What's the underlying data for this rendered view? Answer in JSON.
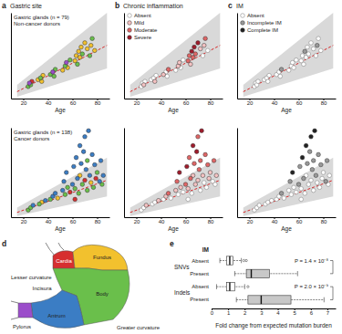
{
  "chart_data": [
    {
      "type": "scatter",
      "panel": "a",
      "title": "Gastric site",
      "annotations": [
        "Gastric glands (n = 79)",
        "Non-cancer donors"
      ],
      "xlabel": "Age",
      "xlim": [
        10,
        90
      ],
      "xticks": [
        20,
        40,
        60,
        80
      ],
      "ylim": [
        0,
        100
      ],
      "tick_labels": "x",
      "marker": "circle",
      "expected": {
        "x": [
          15,
          88
        ],
        "values": [
          8,
          62
        ],
        "color": "#d62728",
        "line_style": "dashed"
      },
      "interval": {
        "x": [
          15,
          88
        ],
        "lower": [
          2,
          35
        ],
        "upper": [
          16,
          100
        ]
      },
      "series": [
        {
          "color": "#d62f2f",
          "x": [
            27
          ],
          "values": [
            20
          ]
        },
        {
          "color": "#f2c12e",
          "x": [
            32,
            35,
            36,
            52,
            56,
            62,
            63,
            65,
            66,
            67,
            70,
            72,
            75,
            78
          ],
          "values": [
            22,
            20,
            27,
            33,
            36,
            44,
            50,
            55,
            48,
            60,
            65,
            58,
            62,
            56
          ]
        },
        {
          "color": "#6abf4b",
          "x": [
            24,
            26,
            34,
            42,
            45,
            46,
            54,
            58,
            64,
            68,
            74,
            76
          ],
          "values": [
            14,
            16,
            24,
            28,
            26,
            34,
            38,
            45,
            40,
            52,
            50,
            70
          ]
        },
        {
          "color": "#9b4dca",
          "x": [
            25,
            44,
            55
          ],
          "values": [
            18,
            31,
            42
          ]
        }
      ]
    },
    {
      "type": "scatter",
      "annotations": [
        "Gastric glands (n = 138)",
        "Cancer donors"
      ],
      "xlabel": "Age",
      "xlim": [
        10,
        90
      ],
      "xticks": [
        20,
        40,
        60,
        80
      ],
      "ylim": [
        0,
        150
      ],
      "tick_labels": "x",
      "marker": "circle",
      "expected": {
        "x": [
          15,
          88
        ],
        "values": [
          8,
          62
        ],
        "color": "#d62728",
        "line_style": "dashed"
      },
      "interval": {
        "x": [
          15,
          88
        ],
        "lower": [
          2,
          35
        ],
        "upper": [
          16,
          100
        ]
      },
      "series": [
        {
          "color": "#d62f2f",
          "x": [
            58,
            70,
            79,
            62
          ],
          "values": [
            42,
            62,
            65,
            30
          ]
        },
        {
          "color": "#f2c12e",
          "x": [
            35,
            48,
            66,
            75
          ],
          "values": [
            25,
            32,
            70,
            58
          ]
        },
        {
          "color": "#6abf4b",
          "x": [
            24,
            26,
            33,
            42,
            54,
            56,
            62,
            65,
            68,
            72,
            72,
            77,
            80,
            84
          ],
          "values": [
            12,
            16,
            22,
            30,
            38,
            50,
            48,
            40,
            55,
            45,
            95,
            50,
            75,
            55
          ]
        },
        {
          "color": "#3b7dc4",
          "x": [
            28,
            38,
            44,
            46,
            52,
            53,
            55,
            60,
            61,
            63,
            64,
            66,
            67,
            69,
            70,
            71,
            73,
            74,
            76,
            78,
            82,
            83,
            85
          ],
          "values": [
            20,
            28,
            35,
            40,
            45,
            60,
            75,
            55,
            85,
            100,
            65,
            120,
            90,
            110,
            135,
            80,
            145,
            70,
            105,
            88,
            60,
            95,
            70
          ]
        }
      ]
    },
    {
      "type": "scatter",
      "panel": "b",
      "title": "Chronic inflammation",
      "legend": "top-left",
      "xlabel": "Age",
      "xlim": [
        10,
        90
      ],
      "xticks": [
        20,
        40,
        60,
        80
      ],
      "ylim": [
        0,
        100
      ],
      "tick_labels": "x",
      "marker": "circle",
      "expected": {
        "x": [
          15,
          88
        ],
        "values": [
          8,
          62
        ],
        "color": "#d62728",
        "line_style": "dashed"
      },
      "interval": {
        "x": [
          15,
          88
        ],
        "lower": [
          2,
          35
        ],
        "upper": [
          16,
          100
        ]
      },
      "series": [
        {
          "name": "Absent",
          "color": "#ffffff",
          "x": [
            24,
            25,
            27,
            32,
            34,
            36,
            44,
            45,
            52,
            56,
            58,
            74,
            78
          ],
          "values": [
            14,
            18,
            20,
            22,
            24,
            27,
            31,
            26,
            33,
            36,
            45,
            50,
            56
          ]
        },
        {
          "name": "Mild",
          "color": "#f4c2c2",
          "x": [
            26,
            35,
            42,
            54,
            55,
            64,
            72,
            75
          ],
          "values": [
            16,
            20,
            28,
            38,
            42,
            40,
            58,
            62
          ]
        },
        {
          "name": "Moderate",
          "color": "#e06666",
          "x": [
            46,
            62,
            63,
            66,
            68,
            76
          ],
          "values": [
            34,
            44,
            50,
            48,
            52,
            70
          ]
        },
        {
          "name": "Severe",
          "color": "#a01c2c",
          "x": [
            65,
            67,
            70
          ],
          "values": [
            55,
            60,
            65
          ]
        }
      ]
    },
    {
      "type": "scatter",
      "xlabel": "Age",
      "xlim": [
        10,
        90
      ],
      "xticks": [
        20,
        40,
        60,
        80
      ],
      "ylim": [
        0,
        150
      ],
      "tick_labels": "x",
      "marker": "circle",
      "expected": {
        "x": [
          15,
          88
        ],
        "values": [
          8,
          62
        ],
        "color": "#d62728",
        "line_style": "dashed"
      },
      "interval": {
        "x": [
          15,
          88
        ],
        "lower": [
          2,
          35
        ],
        "upper": [
          16,
          100
        ]
      },
      "series": [
        {
          "color": "#ffffff",
          "x": [
            24,
            26,
            33,
            35,
            42,
            48,
            54,
            58,
            65,
            72,
            75,
            77,
            82,
            84,
            62
          ],
          "values": [
            12,
            16,
            22,
            25,
            30,
            32,
            38,
            42,
            40,
            45,
            58,
            50,
            60,
            55,
            30
          ]
        },
        {
          "color": "#f4c2c2",
          "x": [
            28,
            38,
            44,
            52,
            56,
            62,
            66,
            68,
            70,
            74,
            79,
            80,
            85
          ],
          "values": [
            20,
            28,
            35,
            45,
            50,
            48,
            70,
            55,
            62,
            70,
            65,
            75,
            70
          ]
        },
        {
          "color": "#e06666",
          "x": [
            46,
            53,
            60,
            63,
            64,
            67,
            70,
            71,
            72,
            76,
            78,
            83
          ],
          "values": [
            40,
            60,
            55,
            100,
            65,
            90,
            135,
            80,
            95,
            105,
            88,
            95
          ]
        },
        {
          "color": "#a01c2c",
          "x": [
            55,
            61,
            66,
            69,
            73
          ],
          "values": [
            75,
            85,
            120,
            110,
            145
          ]
        }
      ]
    },
    {
      "type": "scatter",
      "panel": "c",
      "title": "IM",
      "legend": "top-left",
      "xlabel": "Age",
      "xlim": [
        10,
        90
      ],
      "xticks": [
        20,
        40,
        60,
        80
      ],
      "ylim": [
        0,
        100
      ],
      "tick_labels": "x",
      "marker": "circle",
      "expected": {
        "x": [
          15,
          88
        ],
        "values": [
          8,
          62
        ],
        "color": "#d62728",
        "line_style": "dashed"
      },
      "interval": {
        "x": [
          15,
          88
        ],
        "lower": [
          2,
          35
        ],
        "upper": [
          16,
          100
        ]
      },
      "series": [
        {
          "name": "Absent",
          "color": "#ffffff",
          "x": [
            24,
            25,
            26,
            27,
            32,
            34,
            35,
            36,
            42,
            44,
            45,
            52,
            54,
            55,
            56,
            58,
            62,
            63,
            64,
            66,
            67,
            68,
            70,
            72,
            74,
            76,
            78
          ],
          "values": [
            14,
            18,
            16,
            20,
            22,
            24,
            20,
            27,
            28,
            31,
            26,
            33,
            38,
            42,
            36,
            45,
            44,
            50,
            40,
            48,
            60,
            52,
            65,
            58,
            50,
            70,
            56
          ]
        },
        {
          "name": "Incomplete IM",
          "color": "#999999",
          "x": [
            46,
            65,
            75
          ],
          "values": [
            34,
            55,
            62
          ]
        },
        {
          "name": "Complete IM",
          "color": "#222222",
          "x": [],
          "values": []
        }
      ]
    },
    {
      "type": "scatter",
      "xlabel": "Age",
      "xlim": [
        10,
        90
      ],
      "xticks": [
        20,
        40,
        60,
        80
      ],
      "ylim": [
        0,
        150
      ],
      "tick_labels": "x",
      "marker": "circle",
      "expected": {
        "x": [
          15,
          88
        ],
        "values": [
          8,
          62
        ],
        "color": "#d62728",
        "line_style": "dashed"
      },
      "interval": {
        "x": [
          15,
          88
        ],
        "lower": [
          2,
          35
        ],
        "upper": [
          16,
          100
        ]
      },
      "series": [
        {
          "color": "#ffffff",
          "x": [
            24,
            26,
            28,
            33,
            35,
            38,
            42,
            44,
            48,
            52,
            54,
            56,
            58,
            62,
            65,
            66,
            68,
            70,
            72,
            75,
            77,
            79,
            80,
            84,
            85,
            62
          ],
          "values": [
            12,
            16,
            20,
            22,
            25,
            28,
            30,
            35,
            32,
            45,
            38,
            50,
            42,
            48,
            40,
            70,
            55,
            62,
            45,
            58,
            50,
            65,
            75,
            55,
            70,
            30
          ]
        },
        {
          "color": "#999999",
          "x": [
            46,
            53,
            60,
            61,
            64,
            67,
            69,
            71,
            72,
            74,
            76,
            78,
            82,
            83
          ],
          "values": [
            40,
            60,
            55,
            85,
            65,
            90,
            110,
            80,
            95,
            70,
            105,
            88,
            60,
            95
          ]
        },
        {
          "color": "#222222",
          "x": [
            55,
            63,
            66,
            70,
            73
          ],
          "values": [
            75,
            100,
            120,
            135,
            145
          ]
        }
      ]
    },
    {
      "type": "box",
      "panel": "e",
      "orientation": "horizontal",
      "ylabel": "IM",
      "xlabel": "Fold change from expected mutation burden",
      "xlim": [
        0,
        7.5
      ],
      "xticks": [
        0,
        1,
        2,
        3,
        4,
        5,
        6,
        7
      ],
      "series": [
        {
          "name": "SNVs",
          "categories": [
            "Absent",
            "Present"
          ],
          "colors": [
            "#ffffff",
            "#c8c8c8"
          ],
          "min": [
            0.5,
            1.4
          ],
          "q1": [
            0.9,
            2.1
          ],
          "median": [
            1.1,
            2.4
          ],
          "q3": [
            1.3,
            3.5
          ],
          "max": [
            1.8,
            5.2
          ],
          "outliers": [
            [
              1.95,
              2.1
            ],
            []
          ],
          "annotation": "P = 1.4 × 10⁻⁸"
        },
        {
          "name": "Indels",
          "categories": [
            "Absent",
            "Present"
          ],
          "colors": [
            "#ffffff",
            "#c8c8c8"
          ],
          "min": [
            0.3,
            1.5
          ],
          "q1": [
            0.9,
            2.2
          ],
          "median": [
            1.1,
            3.0
          ],
          "q3": [
            1.4,
            4.8
          ],
          "max": [
            2.0,
            6.8
          ],
          "outliers": [
            [
              2.2
            ],
            []
          ],
          "annotation": "P = 2.0 × 10⁻⁹"
        }
      ]
    }
  ],
  "diagram": {
    "panel": "d",
    "regions": [
      {
        "label": "Cardia",
        "color": "#d62f2f"
      },
      {
        "label": "Fundus",
        "color": "#f2c12e"
      },
      {
        "label": "Body",
        "color": "#6abf4b"
      },
      {
        "label": "Antrum",
        "color": "#3b7dc4"
      },
      {
        "label": "Pylorus",
        "color": "#9b4dca"
      }
    ],
    "labels": [
      "Lesser curvature",
      "Incisura",
      "Greater curvature"
    ]
  }
}
